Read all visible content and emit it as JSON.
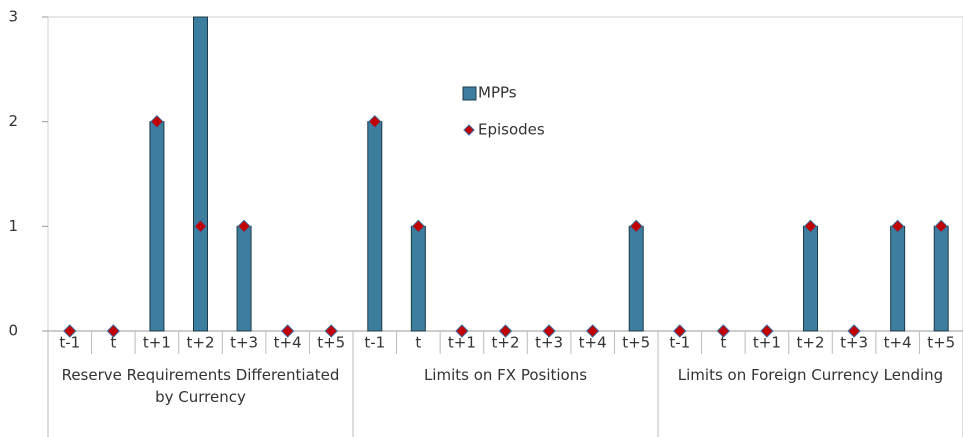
{
  "chart_data": {
    "type": "bar",
    "categories": [
      "t-1",
      "t",
      "t+1",
      "t+2",
      "t+3",
      "t+4",
      "t+5",
      "t-1",
      "t",
      "t+1",
      "t+2",
      "t+3",
      "t+4",
      "t+5",
      "t-1",
      "t",
      "t+1",
      "t+2",
      "t+3",
      "t+4",
      "t+5"
    ],
    "groups": [
      "Reserve Requirements Differentiated by Currency",
      "Limits on FX Positions",
      "Limits on Foreign Currency Lending"
    ],
    "series": [
      {
        "name": "MPPs",
        "type": "bar",
        "color": "#3d7e9e",
        "values": [
          0,
          0,
          2,
          3,
          1,
          0,
          0,
          2,
          1,
          0,
          0,
          0,
          0,
          1,
          0,
          0,
          0,
          1,
          0,
          1,
          1
        ]
      },
      {
        "name": "Episodes",
        "type": "scatter",
        "color": "#c00000",
        "values": [
          0,
          0,
          2,
          1,
          1,
          0,
          0,
          2,
          1,
          0,
          0,
          0,
          0,
          1,
          0,
          0,
          0,
          1,
          0,
          1,
          1
        ]
      }
    ],
    "ylim": [
      0,
      3
    ],
    "yticks": [
      0,
      1,
      2,
      3
    ],
    "grid": false
  }
}
